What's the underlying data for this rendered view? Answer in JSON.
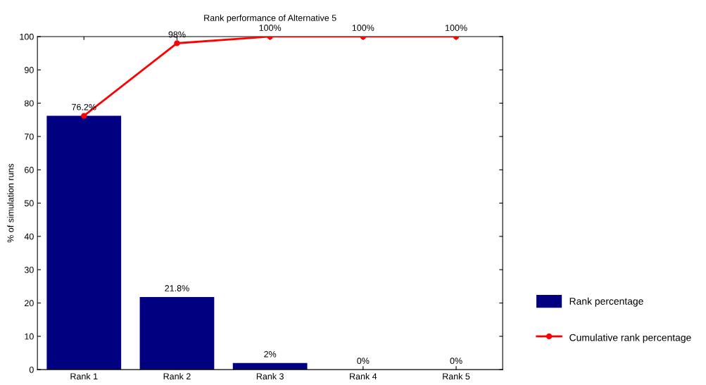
{
  "chart_data": {
    "type": "bar",
    "title": "Rank performance of Alternative 5",
    "ylabel": "% of simulation runs",
    "categories": [
      "Rank 1",
      "Rank 2",
      "Rank 3",
      "Rank 4",
      "Rank 5"
    ],
    "series": [
      {
        "name": "Rank percentage",
        "color": "#000080",
        "values": [
          76.2,
          21.8,
          2,
          0,
          0
        ],
        "value_labels": [
          "76.2%",
          "21.8%",
          "2%",
          "0%",
          "0%"
        ]
      },
      {
        "name": "Cumulative rank percentage",
        "type": "line",
        "color": "#ff0000",
        "values": [
          76.2,
          98,
          100,
          100,
          100
        ],
        "value_labels": [
          null,
          "98%",
          "100%",
          "100%",
          "100%"
        ],
        "marker": "circle",
        "line_style": "solid"
      }
    ],
    "ylim": [
      0,
      100
    ],
    "yticks": [
      0,
      10,
      20,
      30,
      40,
      50,
      60,
      70,
      80,
      90,
      100
    ],
    "grid": false,
    "legend": "right"
  }
}
